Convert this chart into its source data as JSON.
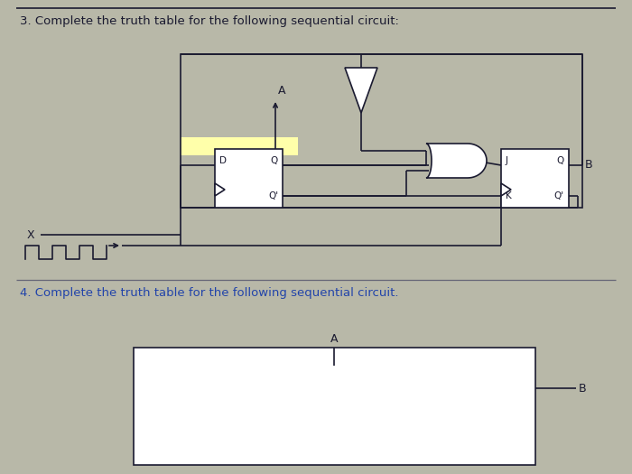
{
  "bg_color": "#b8b8a8",
  "line_color": "#1a1a30",
  "highlight_color": "#ffffaa",
  "text_color": "#1a1a30",
  "title1": "3. Complete the truth table for the following sequential circuit:",
  "title2": "4. Complete the truth table for the following sequential circuit.",
  "title1_fontsize": 9.5,
  "title2_fontsize": 9.5,
  "label_x": "X",
  "label_a": "A",
  "label_b": "B",
  "label_b2": "B",
  "label_d": "D",
  "label_q": "Q",
  "label_q_prime": "Q'",
  "label_j": "J",
  "label_k": "K",
  "label_q2": "Q",
  "label_q2_prime": "Q'",
  "sep_color": "#555566",
  "circuit2_text_color": "#2244aa"
}
